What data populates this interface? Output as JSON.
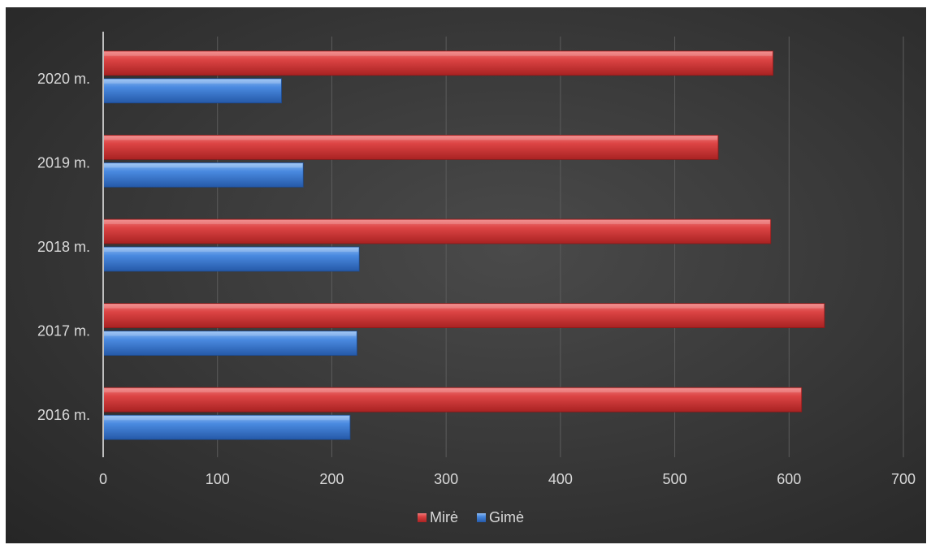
{
  "chart_data": {
    "type": "bar",
    "orientation": "horizontal",
    "categories": [
      "2016 m.",
      "2017 m.",
      "2018 m.",
      "2019 m.",
      "2020 m."
    ],
    "series": [
      {
        "name": "Gimė",
        "values": [
          216,
          222,
          224,
          175,
          156
        ],
        "color": "#3f7fd6"
      },
      {
        "name": "Mirė",
        "values": [
          611,
          631,
          584,
          538,
          586
        ],
        "color": "#d63b3b"
      }
    ],
    "title": "",
    "xlabel": "",
    "ylabel": "",
    "xlim": [
      0,
      700
    ],
    "xticks": [
      "0",
      "100",
      "200",
      "300",
      "400",
      "500",
      "600",
      "700"
    ],
    "grid": true,
    "legend_placement": "bottom",
    "legend_order": [
      "Mirė",
      "Gimė"
    ],
    "background_color": "#3a3a3a"
  }
}
